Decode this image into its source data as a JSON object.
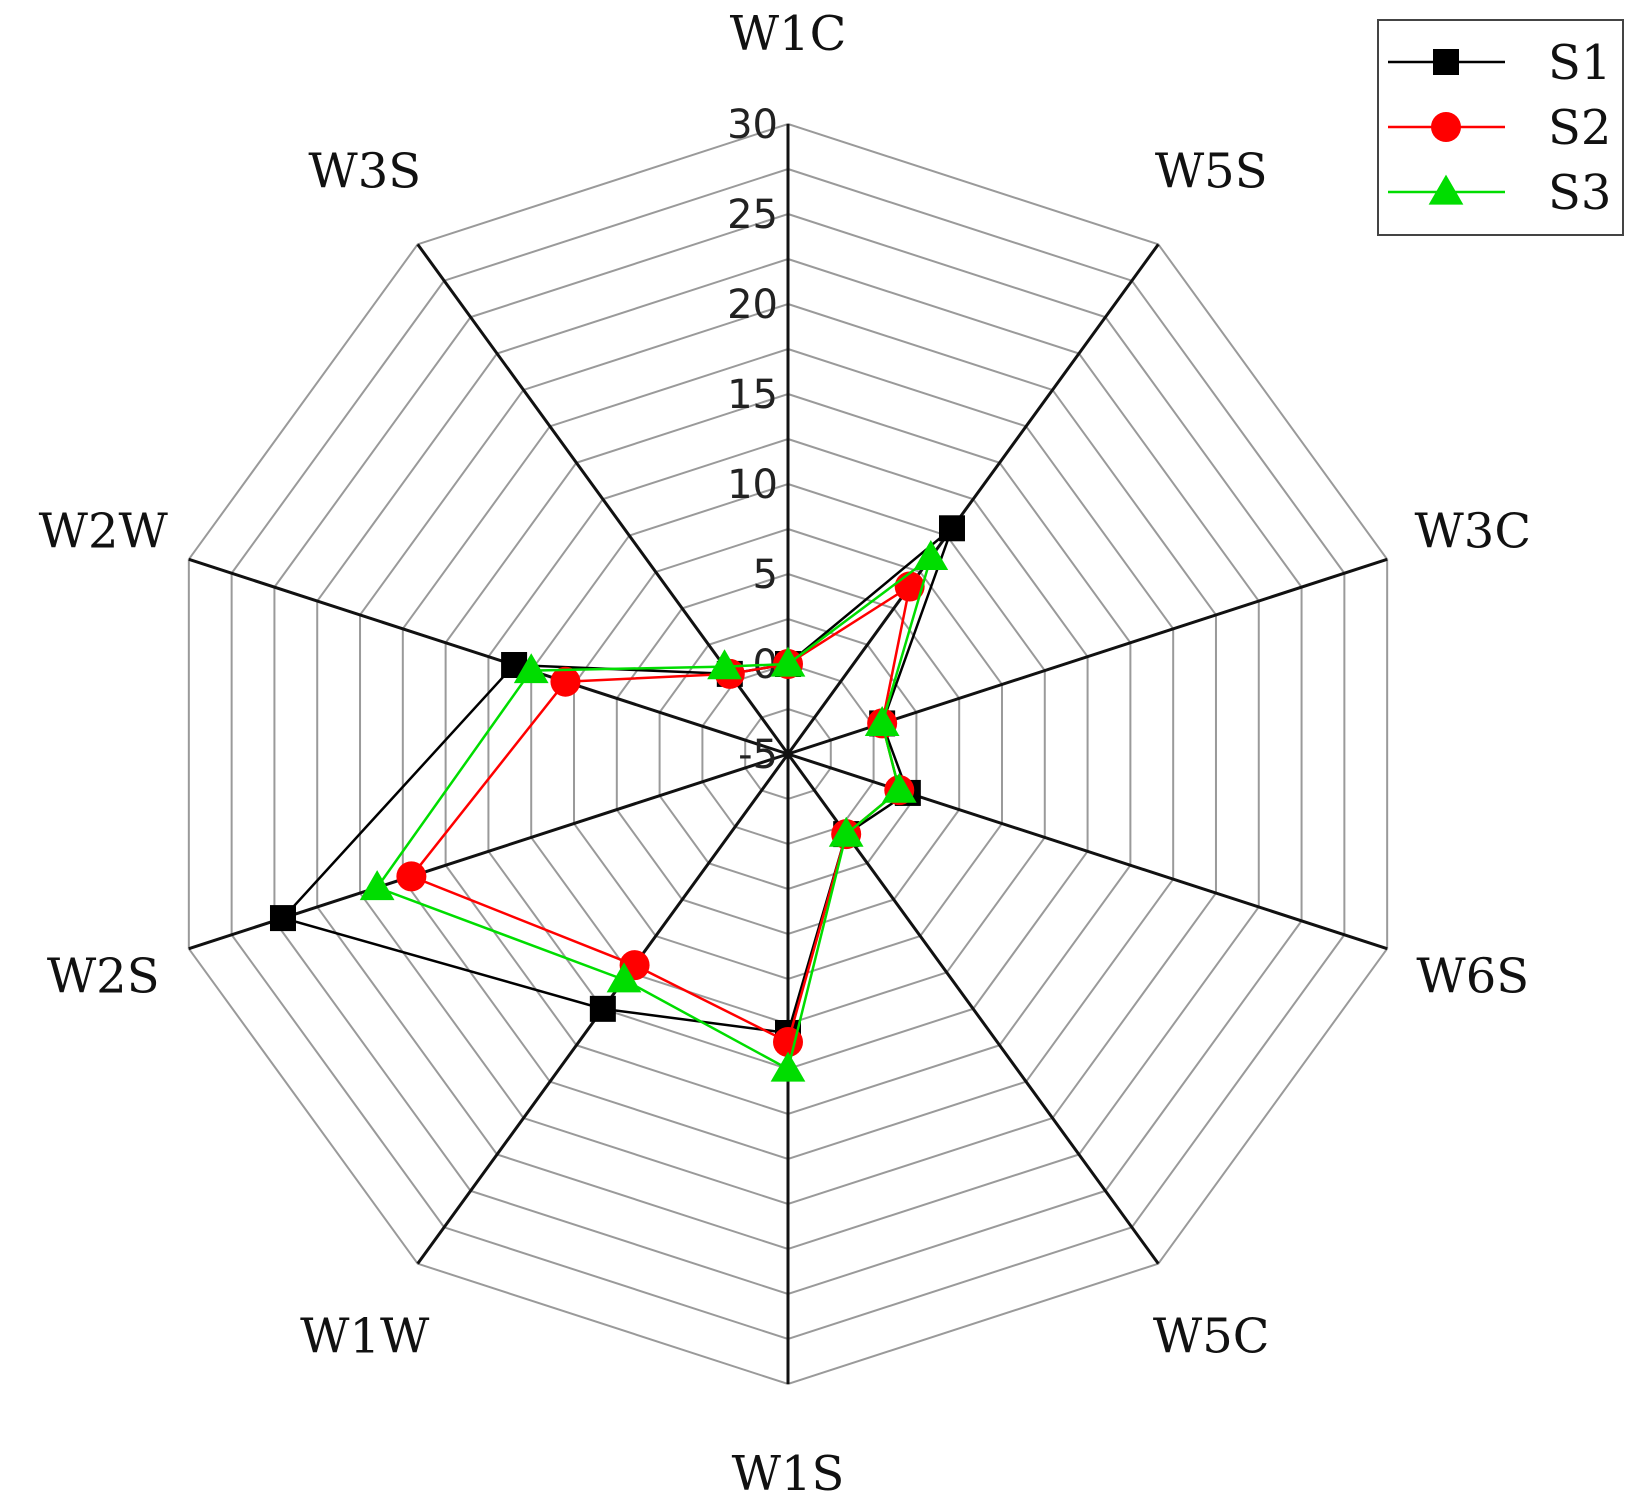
{
  "chart_data": {
    "type": "radar",
    "categories": [
      "W1C",
      "W5S",
      "W3C",
      "W6S",
      "W5C",
      "W1S",
      "W1W",
      "W2S",
      "W2W",
      "W3S"
    ],
    "rlim": [
      -5,
      30
    ],
    "ticks": [
      30,
      25,
      20,
      15,
      10,
      5,
      0,
      -5
    ],
    "tick_labels": [
      "30",
      "25",
      "20",
      "15",
      "10",
      "5",
      "0",
      "-5"
    ],
    "legend_position": "top-right",
    "series": [
      {
        "name": "S1",
        "color": "#000000",
        "marker": "square",
        "values": [
          0,
          10.5,
          0.5,
          2,
          0.5,
          10.5,
          12.5,
          24.5,
          11,
          0.5
        ]
      },
      {
        "name": "S2",
        "color": "#ff0000",
        "marker": "circle",
        "values": [
          0,
          6.5,
          0.5,
          1.5,
          0.5,
          11,
          9.5,
          17,
          8,
          0.5
        ]
      },
      {
        "name": "S3",
        "color": "#00dd00",
        "marker": "triangle",
        "values": [
          0,
          8.5,
          0.5,
          1.5,
          0.5,
          12.5,
          10.5,
          19,
          10,
          1
        ]
      }
    ]
  }
}
